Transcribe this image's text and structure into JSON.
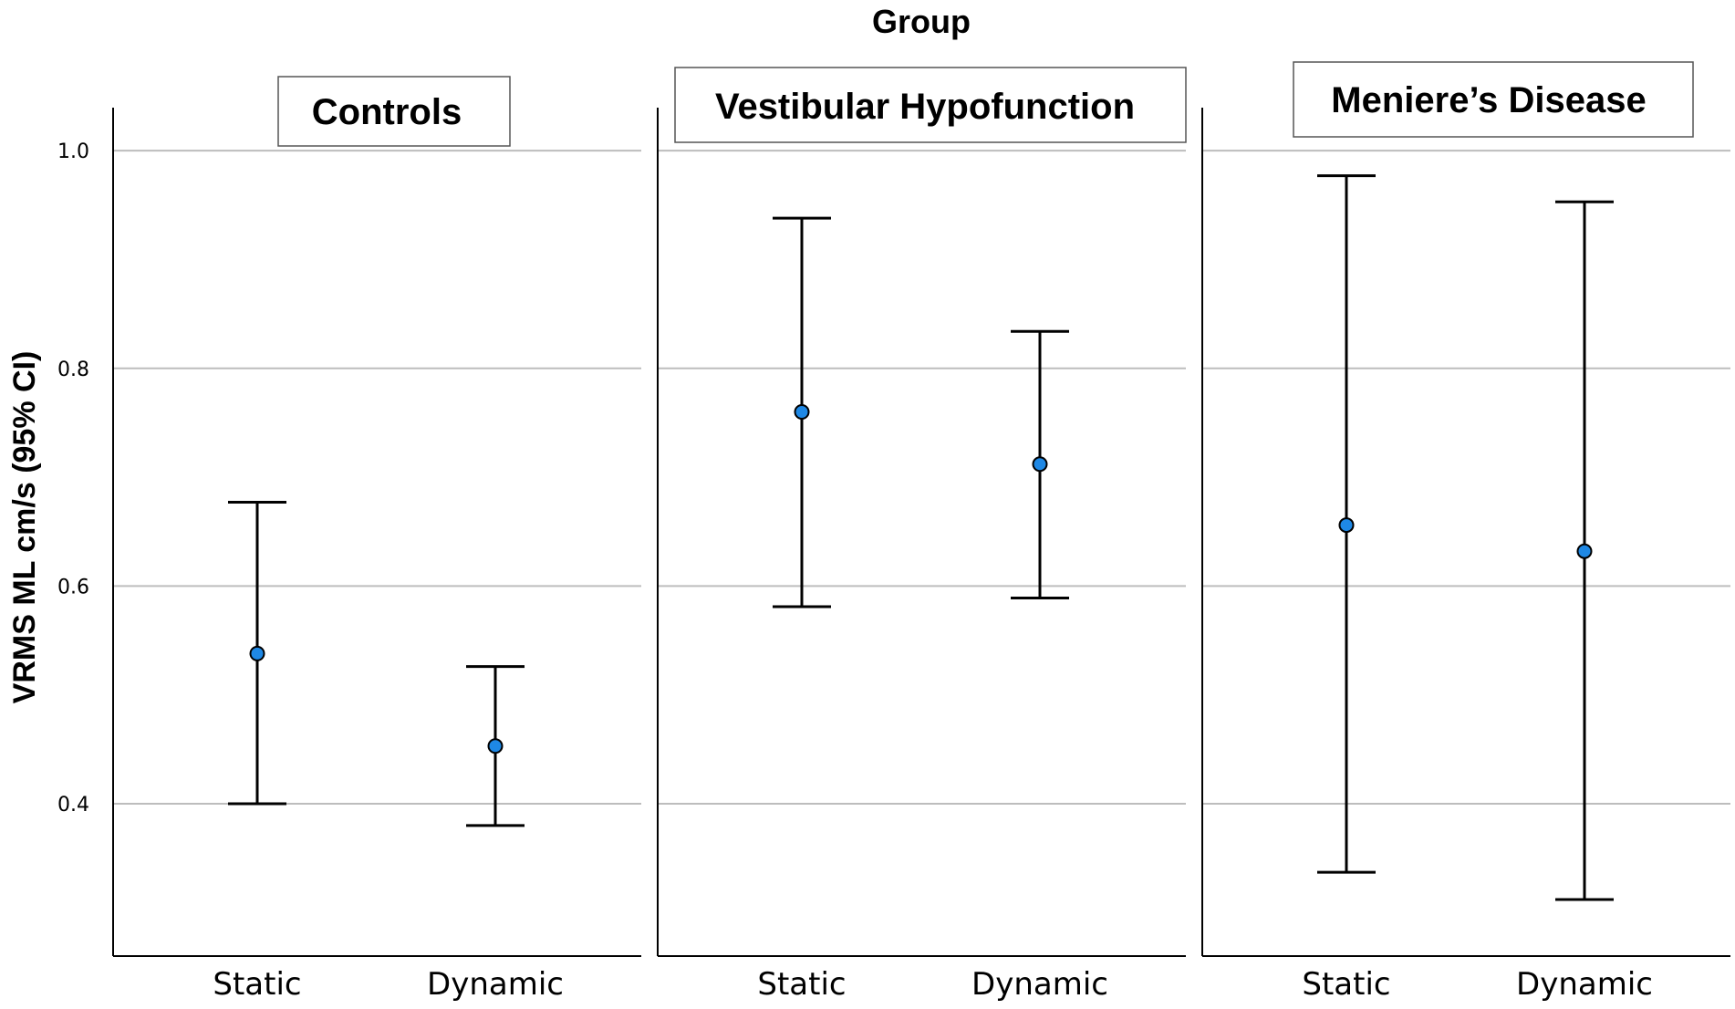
{
  "chart_data": {
    "type": "error-bar",
    "title": "Group",
    "ylabel": "VRMS ML cm/s (95% CI)",
    "ylim": [
      0.26,
      1.04
    ],
    "yticks": [
      0.4,
      0.6,
      0.8,
      1.0
    ],
    "ytick_labels": [
      "0.4",
      "0.6",
      "0.8",
      "1.0"
    ],
    "grid": true,
    "categories": [
      "Static",
      "Dynamic"
    ],
    "panels": [
      {
        "name": "Controls",
        "points": [
          {
            "category": "Static",
            "mean": 0.538,
            "lower": 0.4,
            "upper": 0.677
          },
          {
            "category": "Dynamic",
            "mean": 0.453,
            "lower": 0.38,
            "upper": 0.526
          }
        ]
      },
      {
        "name": "Vestibular Hypofunction",
        "points": [
          {
            "category": "Static",
            "mean": 0.76,
            "lower": 0.581,
            "upper": 0.938
          },
          {
            "category": "Dynamic",
            "mean": 0.712,
            "lower": 0.589,
            "upper": 0.834
          }
        ]
      },
      {
        "name": "Meniere’s Disease",
        "points": [
          {
            "category": "Static",
            "mean": 0.656,
            "lower": 0.337,
            "upper": 0.977
          },
          {
            "category": "Dynamic",
            "mean": 0.632,
            "lower": 0.312,
            "upper": 0.953
          }
        ]
      }
    ],
    "colors": {
      "marker": "#1E88E5",
      "marker_edge": "#000000",
      "errorbar": "#000000",
      "grid": "#BDBDBD",
      "axis": "#000000"
    }
  }
}
